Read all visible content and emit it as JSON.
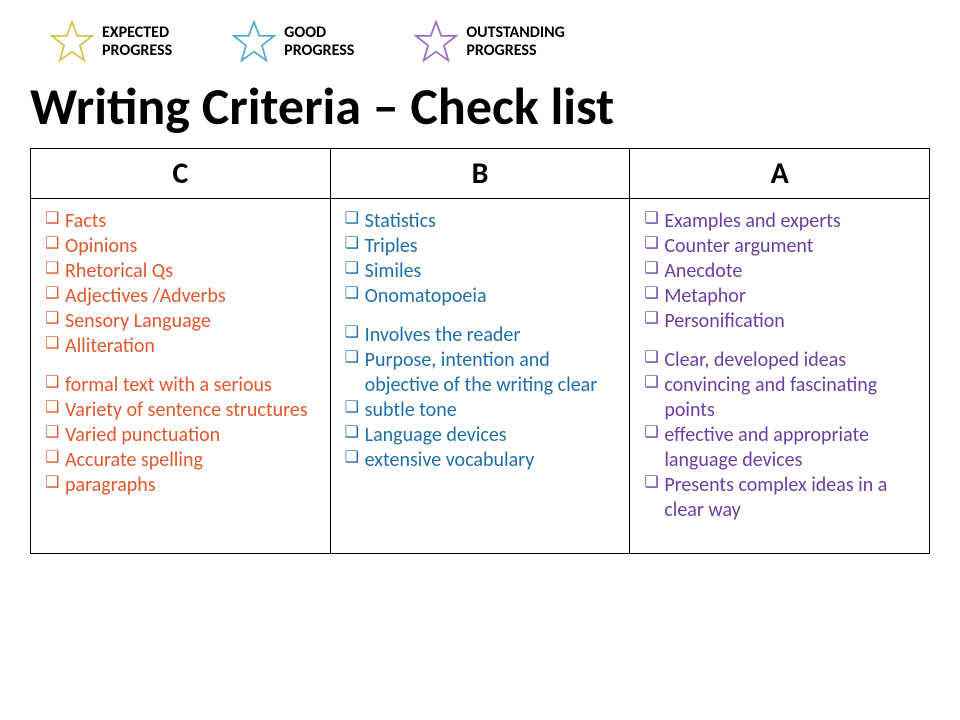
{
  "legend": [
    {
      "label_line1": "EXPECTED",
      "label_line2": "PROGRESS",
      "star_color": "#d4c24a"
    },
    {
      "label_line1": "GOOD",
      "label_line2": "PROGRESS",
      "star_color": "#5aa8d8"
    },
    {
      "label_line1": "OUTSTANDING",
      "label_line2": "PROGRESS",
      "star_color": "#9b6fc4"
    }
  ],
  "title": "Writing Criteria – Check list",
  "columns": {
    "c": {
      "header": "C",
      "color": "#e0582e",
      "group1": [
        "Facts",
        "Opinions",
        "Rhetorical Qs",
        "Adjectives /Adverbs",
        "Sensory Language",
        "Alliteration"
      ],
      "group2": [
        "formal text with a serious",
        "Variety of sentence structures",
        "Varied punctuation",
        "Accurate spelling",
        "paragraphs"
      ]
    },
    "b": {
      "header": "B",
      "color": "#1f6fa8",
      "group1": [
        "Statistics",
        "Triples",
        "Similes",
        "Onomatopoeia"
      ],
      "group2": [
        "Involves the reader",
        "Purpose, intention and objective of the writing clear",
        "subtle tone",
        "Language devices",
        "extensive vocabulary"
      ]
    },
    "a": {
      "header": "A",
      "color": "#6b3fa0",
      "group1": [
        "Examples and experts",
        "Counter argument",
        "Anecdote",
        "Metaphor",
        "Personification"
      ],
      "group2": [
        "Clear, developed ideas",
        "convincing and fascinating points",
        "effective and appropriate language devices",
        "Presents complex ideas in a clear way"
      ]
    }
  }
}
